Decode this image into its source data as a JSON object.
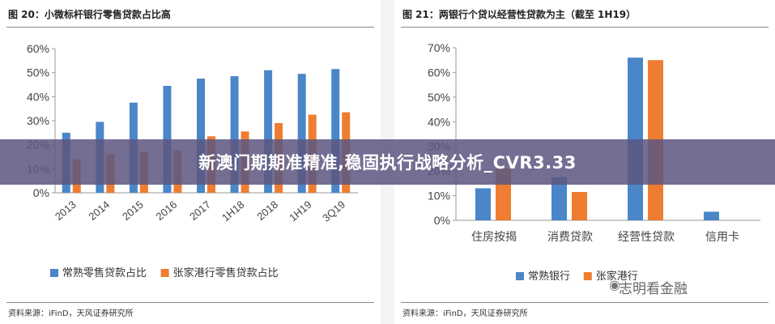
{
  "banner": {
    "text": "新澳门期期准精准,稳固执行战略分析_CVR3.33"
  },
  "watermark": {
    "text": "志明看金融",
    "icon": "wechat-logo-icon"
  },
  "chart_data": [
    {
      "type": "bar",
      "title": "图 20：小微标杆银行零售贷款占比高",
      "source": "资料来源：iFinD，天风证券研究所",
      "categories": [
        "2013",
        "2014",
        "2015",
        "2016",
        "2017",
        "1H18",
        "2018",
        "1H19",
        "3Q19"
      ],
      "series": [
        {
          "name": "常熟零售贷款占比",
          "color": "#4a86c8",
          "values": [
            25,
            29.5,
            37.5,
            44.5,
            47.5,
            48.5,
            51,
            49.5,
            51.5
          ]
        },
        {
          "name": "张家港行零售贷款占比",
          "color": "#ee7d31",
          "values": [
            14,
            16,
            17,
            17.5,
            23.5,
            25.5,
            29,
            32.5,
            33.5
          ]
        }
      ],
      "ylim": [
        0,
        60
      ],
      "yticks": [
        0,
        10,
        20,
        30,
        40,
        50,
        60
      ],
      "ytick_labels": [
        "0%",
        "10%",
        "20%",
        "30%",
        "40%",
        "50%",
        "60%"
      ],
      "legend_position": "bottom",
      "grid": false
    },
    {
      "type": "bar",
      "title": "图 21：两银行个贷以经营性贷款为主（截至 1H19）",
      "source": "资料来源：iFinD，天风证券研究所",
      "categories": [
        "住房按揭",
        "消费贷款",
        "经营性贷款",
        "信用卡"
      ],
      "series": [
        {
          "name": "常熟银行",
          "color": "#4a86c8",
          "values": [
            13,
            17.5,
            66,
            3.5
          ]
        },
        {
          "name": "张家港行",
          "color": "#ee7d31",
          "values": [
            21,
            11.5,
            65,
            0
          ]
        }
      ],
      "ylim": [
        0,
        70
      ],
      "yticks": [
        0,
        10,
        20,
        30,
        40,
        50,
        60,
        70
      ],
      "ytick_labels": [
        "0%",
        "10%",
        "20%",
        "30%",
        "40%",
        "50%",
        "60%",
        "70%"
      ],
      "legend_position": "bottom",
      "grid": false
    }
  ]
}
